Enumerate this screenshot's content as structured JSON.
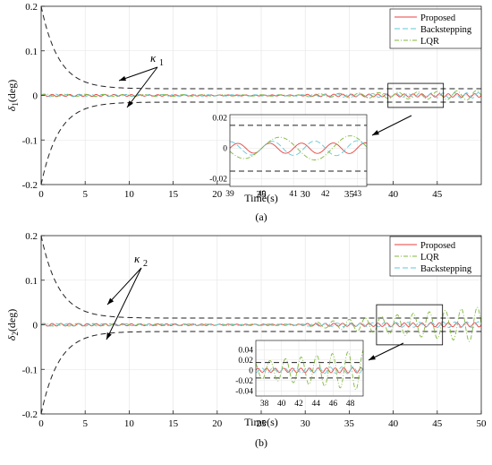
{
  "chart_data": [
    {
      "type": "line",
      "panel_label": "(a)",
      "xlabel": "Time(s)",
      "ylabel": "δ1(deg)",
      "ylabel_main": "δ",
      "ylabel_sub": "1",
      "ylabel_unit": "(deg)",
      "xlim": [
        0,
        50
      ],
      "ylim": [
        -0.2,
        0.2
      ],
      "xticks": [
        0,
        5,
        10,
        15,
        20,
        25,
        30,
        35,
        40,
        45
      ],
      "yticks": [
        -0.2,
        -0.1,
        0,
        0.1,
        0.2
      ],
      "ytick_labels": [
        "-0.2",
        "-0.1",
        "0",
        "0.1",
        "0.2"
      ],
      "grid": true,
      "legend_position": "top-right",
      "annotation": {
        "main": "κ",
        "sub": "1"
      },
      "bound": {
        "initial": 0.2,
        "final": 0.015,
        "decay_rate": 0.5
      },
      "series": [
        {
          "name": "Proposed",
          "color": "#e8423f",
          "dash": "",
          "amp_early": 0.0025,
          "amp_late": 0.004,
          "freq": 1.0
        },
        {
          "name": "Backstepping",
          "color": "#5ec8d8",
          "dash": "6,3",
          "amp_early": 0.003,
          "amp_late": 0.006,
          "freq": 0.75
        },
        {
          "name": "LQR",
          "color": "#7fb93a",
          "dash": "5,2,1,2",
          "amp_early": 0.003,
          "amp_late": 0.011,
          "freq": 0.45
        }
      ],
      "inset": {
        "xlim": [
          39,
          43.3
        ],
        "ylim": [
          -0.025,
          0.022
        ],
        "xticks": [
          39,
          40,
          41,
          42,
          43
        ],
        "yticks": [
          -0.02,
          0,
          0.02
        ],
        "ytick_labels": [
          "-0.02",
          "0",
          "0.02"
        ]
      }
    },
    {
      "type": "line",
      "panel_label": "(b)",
      "xlabel": "Time(s)",
      "ylabel": "δ2(deg)",
      "ylabel_main": "δ",
      "ylabel_sub": "2",
      "ylabel_unit": "(deg)",
      "xlim": [
        0,
        50
      ],
      "ylim": [
        -0.2,
        0.2
      ],
      "xticks": [
        0,
        5,
        10,
        15,
        20,
        25,
        30,
        35,
        40,
        45,
        50
      ],
      "yticks": [
        -0.2,
        -0.1,
        0,
        0.1,
        0.2
      ],
      "ytick_labels": [
        "-0.2",
        "-0.1",
        "0",
        "0.1",
        "0.2"
      ],
      "grid": true,
      "legend_position": "top-right",
      "annotation": {
        "main": "κ",
        "sub": "2"
      },
      "bound": {
        "initial": 0.2,
        "final": 0.015,
        "decay_rate": 0.5
      },
      "series": [
        {
          "name": "Proposed",
          "color": "#e8423f",
          "dash": "",
          "amp_early": 0.003,
          "amp_late": 0.005,
          "freq": 1.0
        },
        {
          "name": "LQR",
          "color": "#7fb93a",
          "dash": "5,2,1,2",
          "amp_early": 0.003,
          "amp_late": 0.04,
          "freq": 0.55
        },
        {
          "name": "Backstepping",
          "color": "#5ec8d8",
          "dash": "6,3",
          "amp_early": 0.003,
          "amp_late": 0.007,
          "freq": 0.75
        }
      ],
      "inset": {
        "xlim": [
          37,
          49.5
        ],
        "ylim": [
          -0.05,
          0.058
        ],
        "xticks": [
          38,
          40,
          42,
          44,
          46,
          48
        ],
        "yticks": [
          -0.04,
          -0.02,
          0,
          0.02,
          0.04
        ],
        "ytick_labels": [
          "-0.04",
          "-0.02",
          "0",
          "0.02",
          "0.04"
        ]
      }
    }
  ]
}
